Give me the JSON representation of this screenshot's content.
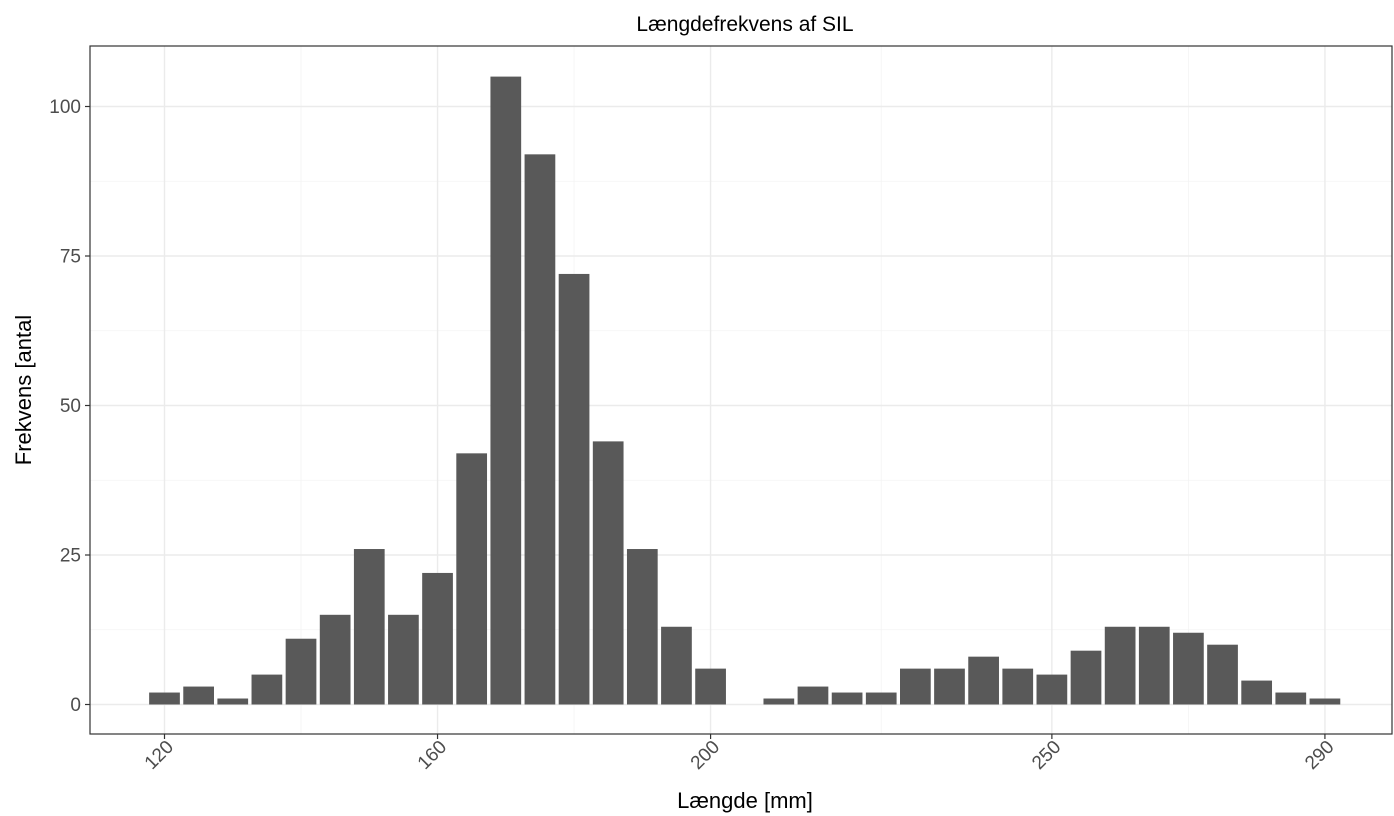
{
  "chart_data": {
    "type": "bar",
    "title": "Længdefrekvens af SIL",
    "xlabel": "Længde [mm]",
    "ylabel": "Frekvens [antal",
    "y_ticks": [
      0,
      25,
      50,
      75,
      100
    ],
    "x_tick_labels": [
      "120",
      "160",
      "200",
      "250",
      "290"
    ],
    "ylim": [
      -5,
      110
    ],
    "grid": true,
    "bar_color": "#595959",
    "bar_slots": 35,
    "x_tick_slots": [
      0.5,
      8.5,
      16.5,
      26.5,
      34.5
    ],
    "values": [
      2,
      3,
      1,
      5,
      11,
      15,
      26,
      15,
      22,
      42,
      105,
      92,
      72,
      44,
      26,
      13,
      6,
      0,
      1,
      3,
      2,
      2,
      6,
      6,
      8,
      6,
      5,
      9,
      13,
      13,
      12,
      10,
      4,
      2,
      1
    ]
  }
}
